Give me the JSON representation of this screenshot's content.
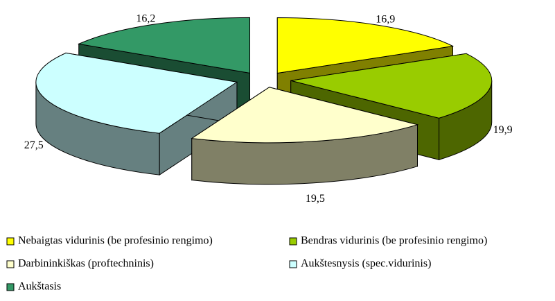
{
  "chart_data": {
    "type": "pie",
    "categories": [
      "Nebaigtas vidurinis (be profesinio rengimo)",
      "Bendras vidurinis (be profesinio rengimo)",
      "Darbininkiškas (proftechninis)",
      "Aukštesnysis (spec.vidurinis)",
      "Aukštasis"
    ],
    "values": [
      16.9,
      19.9,
      19.5,
      27.5,
      16.2
    ],
    "value_labels": [
      "16,9",
      "19,9",
      "19,5",
      "27,5",
      "16,2"
    ],
    "colors": [
      "#ffff00",
      "#99cc00",
      "#ffffcc",
      "#ccffff",
      "#339966"
    ],
    "exploded": true,
    "three_d": true,
    "legend": "bottom"
  }
}
